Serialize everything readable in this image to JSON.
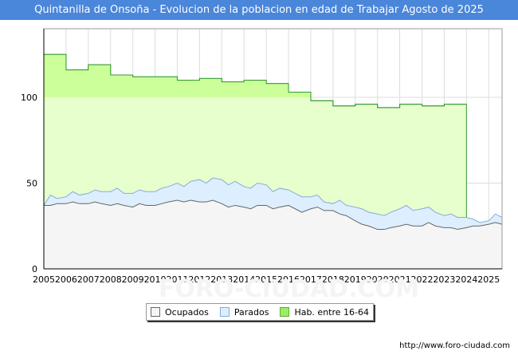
{
  "chart_data": {
    "type": "area",
    "title": "Quintanilla de Onsoña - Evolucion de la poblacion en edad de Trabajar Agosto de 2025",
    "xlabel": "",
    "ylabel": "",
    "ylim": [
      0,
      140
    ],
    "xlim": [
      2005,
      2025.6
    ],
    "y_ticks": [
      0,
      50,
      100
    ],
    "x_ticks": [
      "2005",
      "2006",
      "2007",
      "2008",
      "2009",
      "2010",
      "2011",
      "2012",
      "2013",
      "2014",
      "2015",
      "2016",
      "2017",
      "2018",
      "2019",
      "2020",
      "2021",
      "2022",
      "2023",
      "2024",
      "2025"
    ],
    "grid": true,
    "watermark": "FORO-CIUDAD.COM",
    "series": [
      {
        "name": "Hab. entre 16-64",
        "color": "#99ee66",
        "fill": "#e6ffcc",
        "years": [
          2005,
          2006,
          2007,
          2008,
          2009,
          2010,
          2011,
          2012,
          2013,
          2014,
          2015,
          2016,
          2017,
          2018,
          2019,
          2020,
          2021,
          2022,
          2023
        ],
        "values": [
          125,
          116,
          119,
          113,
          112,
          112,
          110,
          111,
          109,
          110,
          108,
          103,
          98,
          95,
          96,
          94,
          96,
          95,
          96
        ],
        "end_year": 2024
      },
      {
        "name": "Parados",
        "color": "#88aadd",
        "fill": "#ddeeff",
        "x": [
          2005.0,
          2005.3,
          2005.6,
          2006.0,
          2006.3,
          2006.6,
          2007.0,
          2007.3,
          2007.6,
          2008.0,
          2008.3,
          2008.6,
          2009.0,
          2009.3,
          2009.6,
          2010.0,
          2010.3,
          2010.6,
          2011.0,
          2011.3,
          2011.6,
          2012.0,
          2012.3,
          2012.6,
          2013.0,
          2013.3,
          2013.6,
          2014.0,
          2014.3,
          2014.6,
          2015.0,
          2015.3,
          2015.6,
          2016.0,
          2016.3,
          2016.6,
          2017.0,
          2017.3,
          2017.6,
          2018.0,
          2018.3,
          2018.6,
          2019.0,
          2019.3,
          2019.6,
          2020.0,
          2020.3,
          2020.6,
          2021.0,
          2021.3,
          2021.6,
          2022.0,
          2022.3,
          2022.6,
          2023.0,
          2023.3,
          2023.6,
          2024.0,
          2024.3,
          2024.6,
          2025.0,
          2025.3,
          2025.6
        ],
        "values": [
          37,
          43,
          41,
          42,
          45,
          43,
          44,
          46,
          45,
          45,
          47,
          44,
          44,
          46,
          45,
          45,
          47,
          48,
          50,
          48,
          51,
          52,
          50,
          53,
          52,
          49,
          51,
          48,
          47,
          50,
          49,
          45,
          47,
          46,
          44,
          42,
          42,
          43,
          39,
          38,
          40,
          37,
          36,
          35,
          33,
          32,
          31,
          33,
          35,
          37,
          34,
          35,
          36,
          33,
          31,
          32,
          30,
          30,
          29,
          27,
          28,
          32,
          30
        ]
      },
      {
        "name": "Ocupados",
        "color": "#666666",
        "fill": "#f5f5f5",
        "x": [
          2005.0,
          2005.3,
          2005.6,
          2006.0,
          2006.3,
          2006.6,
          2007.0,
          2007.3,
          2007.6,
          2008.0,
          2008.3,
          2008.6,
          2009.0,
          2009.3,
          2009.6,
          2010.0,
          2010.3,
          2010.6,
          2011.0,
          2011.3,
          2011.6,
          2012.0,
          2012.3,
          2012.6,
          2013.0,
          2013.3,
          2013.6,
          2014.0,
          2014.3,
          2014.6,
          2015.0,
          2015.3,
          2015.6,
          2016.0,
          2016.3,
          2016.6,
          2017.0,
          2017.3,
          2017.6,
          2018.0,
          2018.3,
          2018.6,
          2019.0,
          2019.3,
          2019.6,
          2020.0,
          2020.3,
          2020.6,
          2021.0,
          2021.3,
          2021.6,
          2022.0,
          2022.3,
          2022.6,
          2023.0,
          2023.3,
          2023.6,
          2024.0,
          2024.3,
          2024.6,
          2025.0,
          2025.3,
          2025.6
        ],
        "values": [
          37,
          37,
          38,
          38,
          39,
          38,
          38,
          39,
          38,
          37,
          38,
          37,
          36,
          38,
          37,
          37,
          38,
          39,
          40,
          39,
          40,
          39,
          39,
          40,
          38,
          36,
          37,
          36,
          35,
          37,
          37,
          35,
          36,
          37,
          35,
          33,
          35,
          36,
          34,
          34,
          32,
          31,
          28,
          26,
          25,
          23,
          23,
          24,
          25,
          26,
          25,
          25,
          27,
          25,
          24,
          24,
          23,
          24,
          25,
          25,
          26,
          27,
          26
        ]
      }
    ],
    "legend": [
      "Ocupados",
      "Parados",
      "Hab. entre 16-64"
    ],
    "legend_position": "bottom-center"
  },
  "footer": "http://www.foro-ciudad.com"
}
